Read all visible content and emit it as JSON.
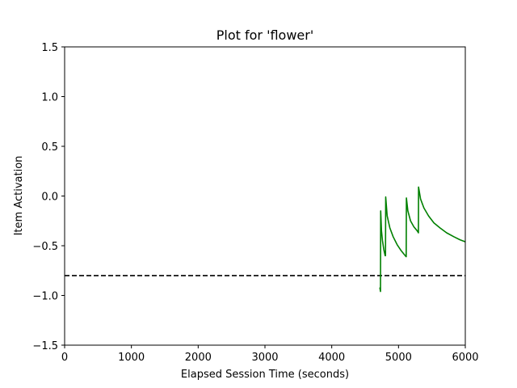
{
  "chart_data": {
    "type": "line",
    "title": "Plot for 'flower'",
    "xlabel": "Elapsed Session Time (seconds)",
    "ylabel": "Item Activation",
    "xlim": [
      0,
      6000
    ],
    "ylim": [
      -1.5,
      1.5
    ],
    "xticks": [
      0,
      1000,
      2000,
      3000,
      4000,
      5000,
      6000
    ],
    "xtick_labels": [
      "0",
      "1000",
      "2000",
      "3000",
      "4000",
      "5000",
      "6000"
    ],
    "yticks": [
      -1.5,
      -1.0,
      -0.5,
      0.0,
      0.5,
      1.0,
      1.5
    ],
    "ytick_labels": [
      "−1.5",
      "−1.0",
      "−0.5",
      "0.0",
      "0.5",
      "1.0",
      "1.5"
    ],
    "grid": false,
    "colors": {
      "series": "#008000",
      "threshold": "#000000"
    },
    "threshold": {
      "y": -0.8,
      "style": "dashed"
    },
    "series": [
      {
        "style": "solid",
        "points": [
          [
            4720,
            -0.92
          ],
          [
            4730,
            -0.96
          ],
          [
            4733,
            -0.15
          ],
          [
            4745,
            -0.35
          ],
          [
            4760,
            -0.45
          ],
          [
            4780,
            -0.54
          ],
          [
            4800,
            -0.6
          ],
          [
            4805,
            -0.6
          ],
          [
            4808,
            -0.01
          ],
          [
            4830,
            -0.2
          ],
          [
            4870,
            -0.32
          ],
          [
            4920,
            -0.41
          ],
          [
            4980,
            -0.49
          ],
          [
            5040,
            -0.55
          ],
          [
            5100,
            -0.6
          ],
          [
            5115,
            -0.61
          ],
          [
            5118,
            -0.02
          ],
          [
            5140,
            -0.15
          ],
          [
            5180,
            -0.25
          ],
          [
            5230,
            -0.31
          ],
          [
            5280,
            -0.35
          ],
          [
            5298,
            -0.37
          ],
          [
            5300,
            0.09
          ],
          [
            5330,
            -0.03
          ],
          [
            5380,
            -0.12
          ],
          [
            5450,
            -0.2
          ],
          [
            5530,
            -0.27
          ],
          [
            5620,
            -0.32
          ],
          [
            5720,
            -0.37
          ],
          [
            5830,
            -0.41
          ],
          [
            5920,
            -0.44
          ],
          [
            6000,
            -0.46
          ]
        ]
      }
    ]
  }
}
